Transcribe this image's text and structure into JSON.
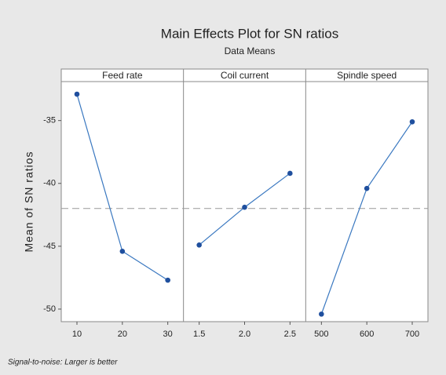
{
  "chart_data": {
    "type": "line",
    "title": "Main Effects Plot for SN ratios",
    "subtitle": "Data Means",
    "ylabel": "Mean of SN ratios",
    "footnote": "Signal-to-noise: Larger is better",
    "ylim": [
      -51,
      -31.9
    ],
    "yticks": [
      -35,
      -40,
      -45,
      -50
    ],
    "reference": -42.0,
    "color": "#3a78c0",
    "marker_color": "#1f4f9e",
    "panels": [
      {
        "title": "Feed rate",
        "categories": [
          "10",
          "20",
          "30"
        ],
        "values": [
          -32.9,
          -45.4,
          -47.7
        ]
      },
      {
        "title": "Coil current",
        "categories": [
          "1.5",
          "2.0",
          "2.5"
        ],
        "values": [
          -44.9,
          -41.9,
          -39.2
        ]
      },
      {
        "title": "Spindle speed",
        "categories": [
          "500",
          "600",
          "700"
        ],
        "values": [
          -50.4,
          -40.4,
          -35.1
        ]
      }
    ]
  }
}
